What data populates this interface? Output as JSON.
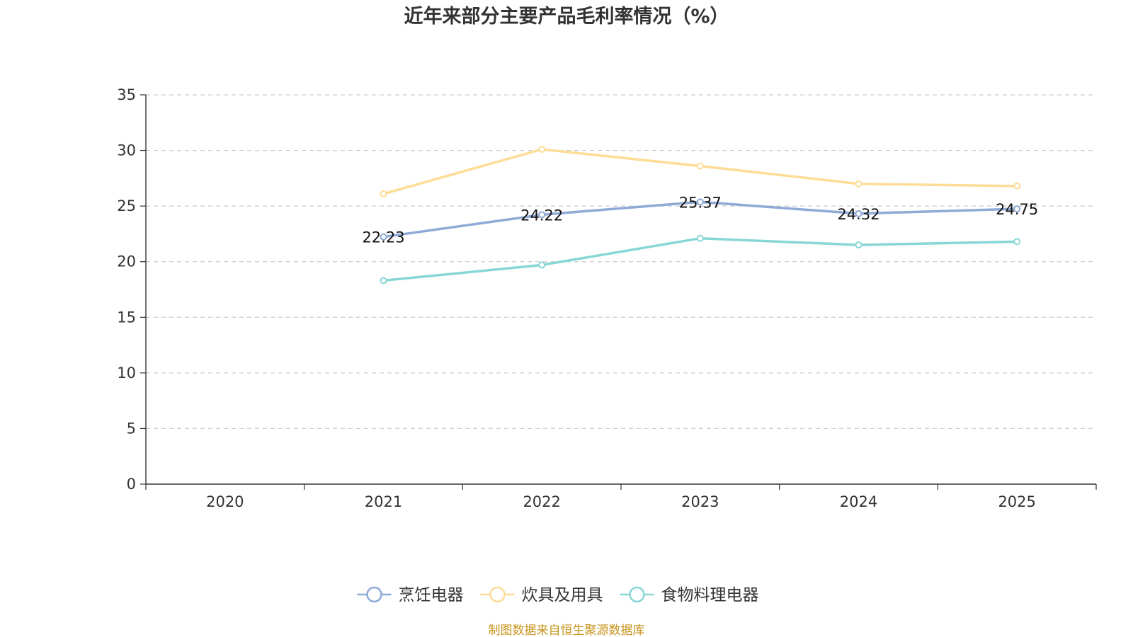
{
  "chart_data": {
    "type": "line",
    "title": "近年来部分主要产品毛利率情况（%）",
    "categories": [
      "2020",
      "2021",
      "2022",
      "2023",
      "2024",
      "2025"
    ],
    "ylim": [
      0,
      35
    ],
    "yticks": [
      "0",
      "5",
      "10",
      "15",
      "20",
      "25",
      "30",
      "35"
    ],
    "grid": true,
    "legend_position": "bottom",
    "series": [
      {
        "name": "烹饪电器",
        "color": "#8eaad6",
        "values": [
          null,
          22.23,
          24.22,
          25.37,
          24.32,
          24.75
        ],
        "labels": [
          null,
          "22.23",
          "24.22",
          "25.37",
          "24.32",
          "24.75"
        ]
      },
      {
        "name": "炊具及用具",
        "color": "#fddc96",
        "values": [
          null,
          26.1,
          30.1,
          28.6,
          27.0,
          26.8
        ],
        "labels": [
          null,
          null,
          null,
          null,
          null,
          null
        ]
      },
      {
        "name": "食物料理电器",
        "color": "#88d6d6",
        "values": [
          null,
          18.3,
          19.7,
          22.1,
          21.5,
          21.8
        ],
        "labels": [
          null,
          null,
          null,
          null,
          null,
          null
        ]
      }
    ]
  },
  "source_note": "制图数据来自恒生聚源数据库"
}
